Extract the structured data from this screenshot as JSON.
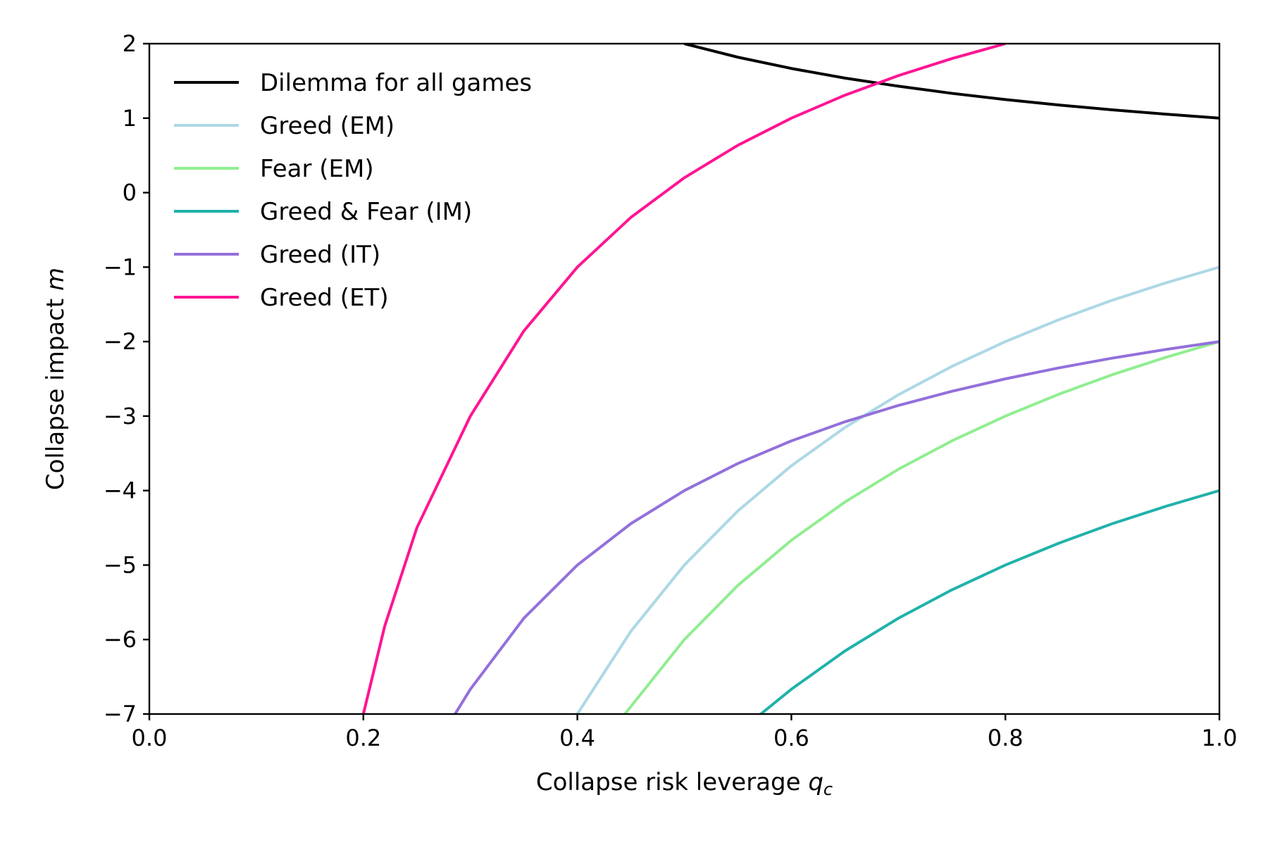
{
  "chart_data": {
    "type": "line",
    "title": "",
    "xlabel": "Collapse risk leverage",
    "xlabel_symbol": "q",
    "xlabel_subscript": "c",
    "ylabel": "Collapse impact",
    "ylabel_symbol": "m",
    "xlim": [
      0.0,
      1.0
    ],
    "ylim": [
      -7,
      2
    ],
    "xticks": [
      "0.0",
      "0.2",
      "0.4",
      "0.6",
      "0.8",
      "1.0"
    ],
    "yticks": [
      "2",
      "1",
      "0",
      "−1",
      "−2",
      "−3",
      "−4",
      "−5",
      "−6",
      "−7"
    ],
    "legend_position": "top-left",
    "grid": false,
    "series": [
      {
        "name": "Dilemma for all games",
        "color": "#000000",
        "points": [
          [
            0.5,
            2.0
          ],
          [
            0.55,
            1.818
          ],
          [
            0.6,
            1.667
          ],
          [
            0.65,
            1.538
          ],
          [
            0.7,
            1.429
          ],
          [
            0.75,
            1.333
          ],
          [
            0.8,
            1.25
          ],
          [
            0.85,
            1.176
          ],
          [
            0.9,
            1.111
          ],
          [
            0.95,
            1.053
          ],
          [
            1.0,
            1.0
          ]
        ]
      },
      {
        "name": "Greed (EM)",
        "color": "#add8e6",
        "points": [
          [
            0.4,
            -7.0
          ],
          [
            0.45,
            -5.889
          ],
          [
            0.5,
            -5.0
          ],
          [
            0.55,
            -4.273
          ],
          [
            0.6,
            -3.667
          ],
          [
            0.65,
            -3.154
          ],
          [
            0.7,
            -2.714
          ],
          [
            0.75,
            -2.333
          ],
          [
            0.8,
            -2.0
          ],
          [
            0.85,
            -1.706
          ],
          [
            0.9,
            -1.444
          ],
          [
            0.95,
            -1.211
          ],
          [
            1.0,
            -1.0
          ]
        ]
      },
      {
        "name": "Fear (EM)",
        "color": "#90ee90",
        "points": [
          [
            0.4444,
            -7.0
          ],
          [
            0.5,
            -6.0
          ],
          [
            0.55,
            -5.273
          ],
          [
            0.6,
            -4.667
          ],
          [
            0.65,
            -4.154
          ],
          [
            0.7,
            -3.714
          ],
          [
            0.75,
            -3.333
          ],
          [
            0.8,
            -3.0
          ],
          [
            0.85,
            -2.706
          ],
          [
            0.9,
            -2.444
          ],
          [
            0.95,
            -2.211
          ],
          [
            1.0,
            -2.0
          ]
        ]
      },
      {
        "name": "Greed & Fear (IM)",
        "color": "#20b2aa",
        "points": [
          [
            0.5714,
            -7.0
          ],
          [
            0.6,
            -6.667
          ],
          [
            0.65,
            -6.154
          ],
          [
            0.7,
            -5.714
          ],
          [
            0.75,
            -5.333
          ],
          [
            0.8,
            -5.0
          ],
          [
            0.85,
            -4.706
          ],
          [
            0.9,
            -4.444
          ],
          [
            0.95,
            -4.211
          ],
          [
            1.0,
            -4.0
          ]
        ]
      },
      {
        "name": "Greed (IT)",
        "color": "#9370db",
        "points": [
          [
            0.2857,
            -7.0
          ],
          [
            0.3,
            -6.667
          ],
          [
            0.35,
            -5.714
          ],
          [
            0.4,
            -5.0
          ],
          [
            0.45,
            -4.444
          ],
          [
            0.5,
            -4.0
          ],
          [
            0.55,
            -3.636
          ],
          [
            0.6,
            -3.333
          ],
          [
            0.65,
            -3.077
          ],
          [
            0.7,
            -2.857
          ],
          [
            0.75,
            -2.667
          ],
          [
            0.8,
            -2.5
          ],
          [
            0.85,
            -2.353
          ],
          [
            0.9,
            -2.222
          ],
          [
            0.95,
            -2.105
          ],
          [
            1.0,
            -2.0
          ]
        ]
      },
      {
        "name": "Greed (ET)",
        "color": "#ff1493",
        "points": [
          [
            0.2,
            -7.0
          ],
          [
            0.22,
            -5.818
          ],
          [
            0.25,
            -4.5
          ],
          [
            0.3,
            -3.0
          ],
          [
            0.35,
            -1.857
          ],
          [
            0.4,
            -1.0
          ],
          [
            0.45,
            -0.333
          ],
          [
            0.5,
            0.2
          ],
          [
            0.55,
            0.636
          ],
          [
            0.6,
            1.0
          ],
          [
            0.65,
            1.308
          ],
          [
            0.7,
            1.571
          ],
          [
            0.75,
            1.8
          ],
          [
            0.8,
            2.0
          ]
        ],
        "note_clip": true
      }
    ]
  }
}
